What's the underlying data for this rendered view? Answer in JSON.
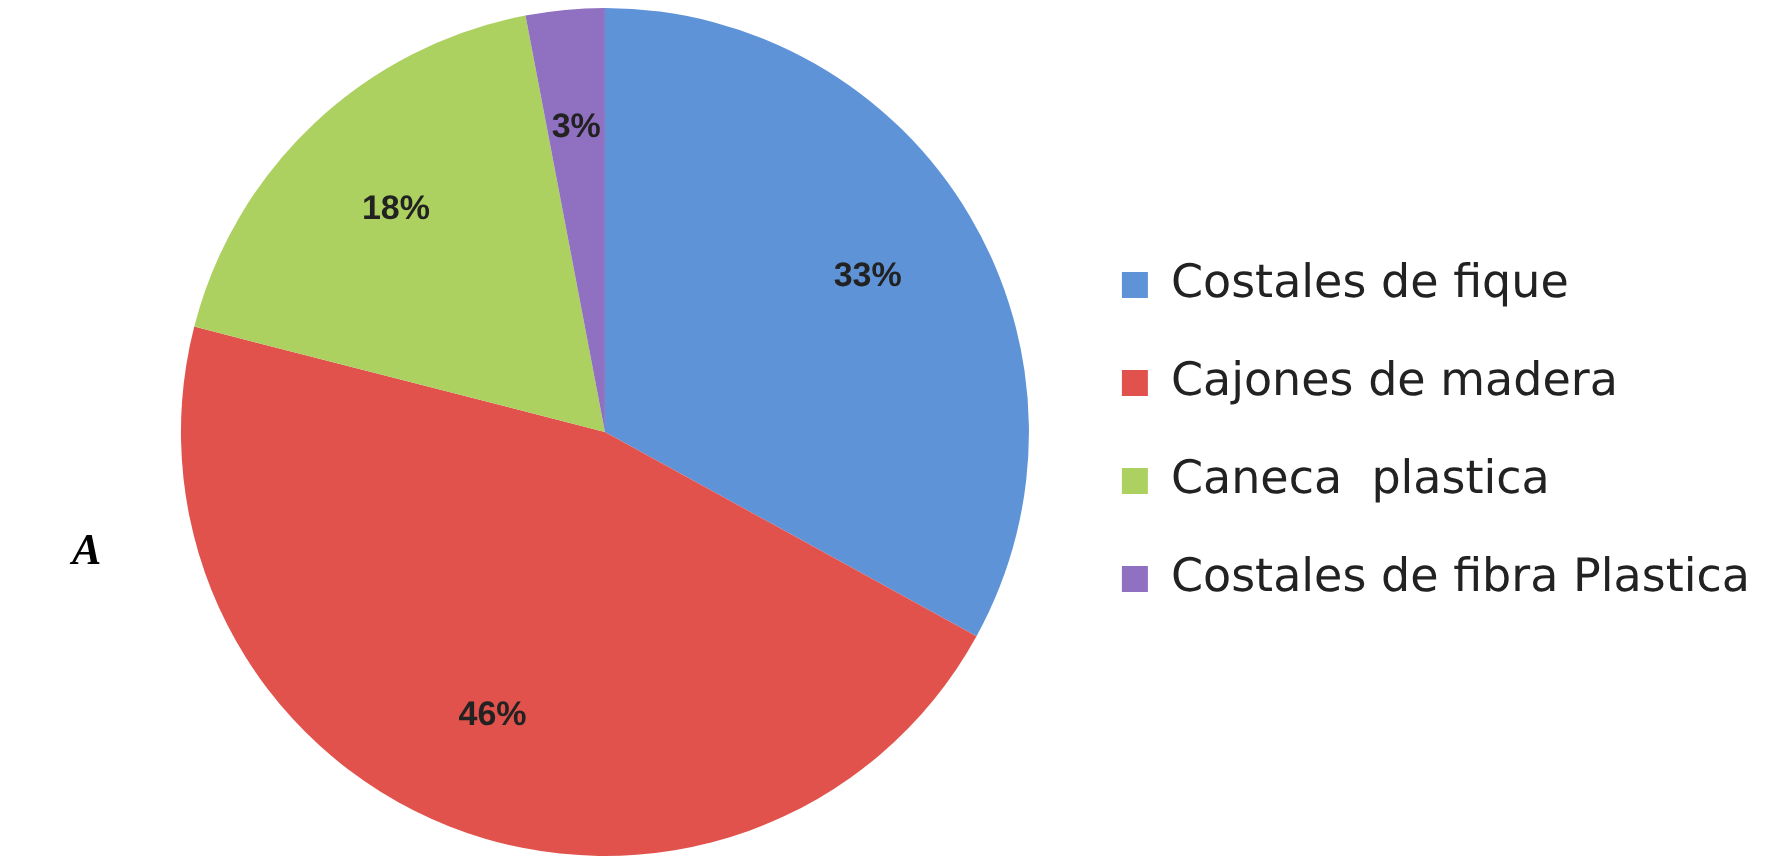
{
  "chart_data": {
    "type": "pie",
    "categories": [
      "Costales de fique",
      "Cajones de madera",
      "Caneca  plastica",
      "Costales de fibra Plastica"
    ],
    "values": [
      33,
      46,
      18,
      3
    ],
    "colors": [
      "#5f93d8",
      "#e2524c",
      "#acd160",
      "#9070c0"
    ],
    "value_labels": [
      "33%",
      "46%",
      "18%",
      "3%"
    ],
    "legend": "right",
    "annotations": [
      "A"
    ]
  }
}
